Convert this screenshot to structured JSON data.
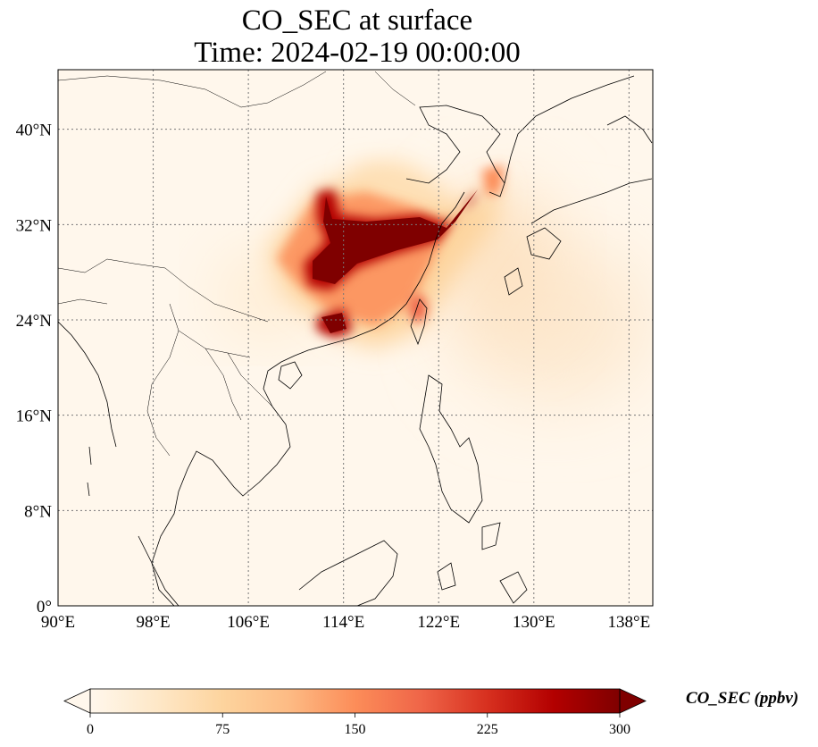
{
  "title": {
    "line1": "CO_SEC at surface",
    "line2": "Time: 2024-02-19 00:00:00"
  },
  "map": {
    "lon_range": [
      90,
      140
    ],
    "lat_range": [
      0,
      45
    ],
    "lon_ticks": [
      "90°E",
      "98°E",
      "106°E",
      "114°E",
      "122°E",
      "130°E",
      "138°E"
    ],
    "lat_ticks": [
      "0°",
      "8°N",
      "16°N",
      "24°N",
      "32°N",
      "40°N"
    ],
    "gridlines": "dotted",
    "coastlines": true,
    "borders": true
  },
  "colorbar": {
    "colormap": "OrRd",
    "range": [
      0,
      300
    ],
    "ticks": [
      "0",
      "75",
      "150",
      "225",
      "300"
    ],
    "extend": "both",
    "label": "CO_SEC (ppbv)",
    "colors": [
      "#fff7ec",
      "#fee8c8",
      "#fdd49e",
      "#fdbb84",
      "#fc8d59",
      "#ef6548",
      "#d7301f",
      "#b30000",
      "#7f0000"
    ]
  }
}
